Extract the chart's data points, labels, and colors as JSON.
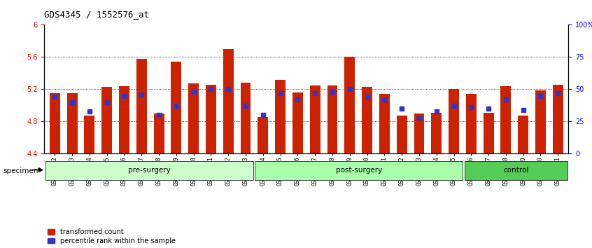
{
  "title": "GDS4345 / 1552576_at",
  "categories": [
    "GSM842012",
    "GSM842013",
    "GSM842014",
    "GSM842015",
    "GSM842016",
    "GSM842017",
    "GSM842018",
    "GSM842019",
    "GSM842020",
    "GSM842021",
    "GSM842022",
    "GSM842023",
    "GSM842024",
    "GSM842025",
    "GSM842026",
    "GSM842027",
    "GSM842028",
    "GSM842029",
    "GSM842030",
    "GSM842031",
    "GSM842032",
    "GSM842033",
    "GSM842034",
    "GSM842035",
    "GSM842036",
    "GSM842037",
    "GSM842038",
    "GSM842039",
    "GSM842040",
    "GSM842041"
  ],
  "red_values": [
    5.15,
    5.15,
    4.87,
    5.23,
    5.24,
    5.58,
    4.9,
    5.54,
    5.27,
    5.26,
    5.7,
    5.28,
    4.86,
    5.32,
    5.16,
    5.25,
    5.25,
    5.6,
    5.23,
    5.14,
    4.87,
    4.9,
    4.91,
    5.2,
    5.14,
    4.91,
    5.24,
    4.87,
    5.19,
    5.26
  ],
  "blue_values": [
    44,
    40,
    33,
    40,
    45,
    46,
    30,
    37,
    48,
    50,
    50,
    37,
    30,
    47,
    42,
    47,
    48,
    50,
    44,
    42,
    35,
    28,
    33,
    37,
    36,
    35,
    42,
    34,
    45,
    47
  ],
  "groups": [
    {
      "label": "pre-surgery",
      "start": 0,
      "end": 12,
      "color": "#ccffcc"
    },
    {
      "label": "post-surgery",
      "start": 12,
      "end": 24,
      "color": "#aaffaa"
    },
    {
      "label": "control",
      "start": 24,
      "end": 30,
      "color": "#66dd66"
    }
  ],
  "ylim": [
    4.4,
    6.0
  ],
  "y2lim": [
    0,
    100
  ],
  "yticks": [
    4.4,
    4.8,
    5.2,
    5.6,
    6.0
  ],
  "y2ticks": [
    0,
    25,
    50,
    75,
    100
  ],
  "ytick_labels": [
    "4.4",
    "4.8",
    "5.2",
    "5.6",
    "6"
  ],
  "y2tick_labels": [
    "0",
    "25",
    "50",
    "75",
    "100%"
  ],
  "bar_color": "#cc2200",
  "dot_color": "#3333cc",
  "bg_color": "#ffffff",
  "plot_bg_color": "#ffffff",
  "grid_color": "#000000",
  "label_red": "transformed count",
  "label_blue": "percentile rank within the sample",
  "specimen_label": "specimen"
}
